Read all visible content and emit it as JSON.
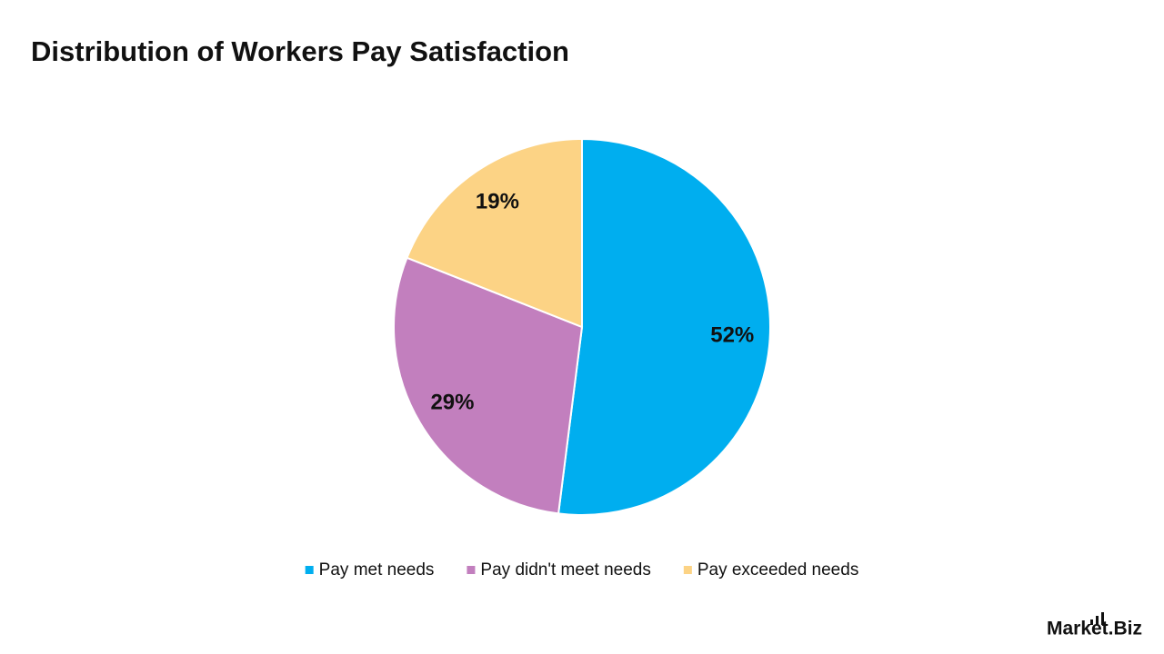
{
  "chart_data": {
    "type": "pie",
    "title": "Distribution of Workers Pay Satisfaction",
    "categories": [
      "Pay met needs",
      "Pay didn't meet needs",
      "Pay exceeded needs"
    ],
    "values": [
      52,
      29,
      19
    ],
    "value_labels": [
      "52%",
      "29%",
      "19%"
    ],
    "colors": [
      "#00aeef",
      "#c27fbe",
      "#fcd385"
    ],
    "legend": "bottom"
  },
  "brand": "Market.Biz"
}
